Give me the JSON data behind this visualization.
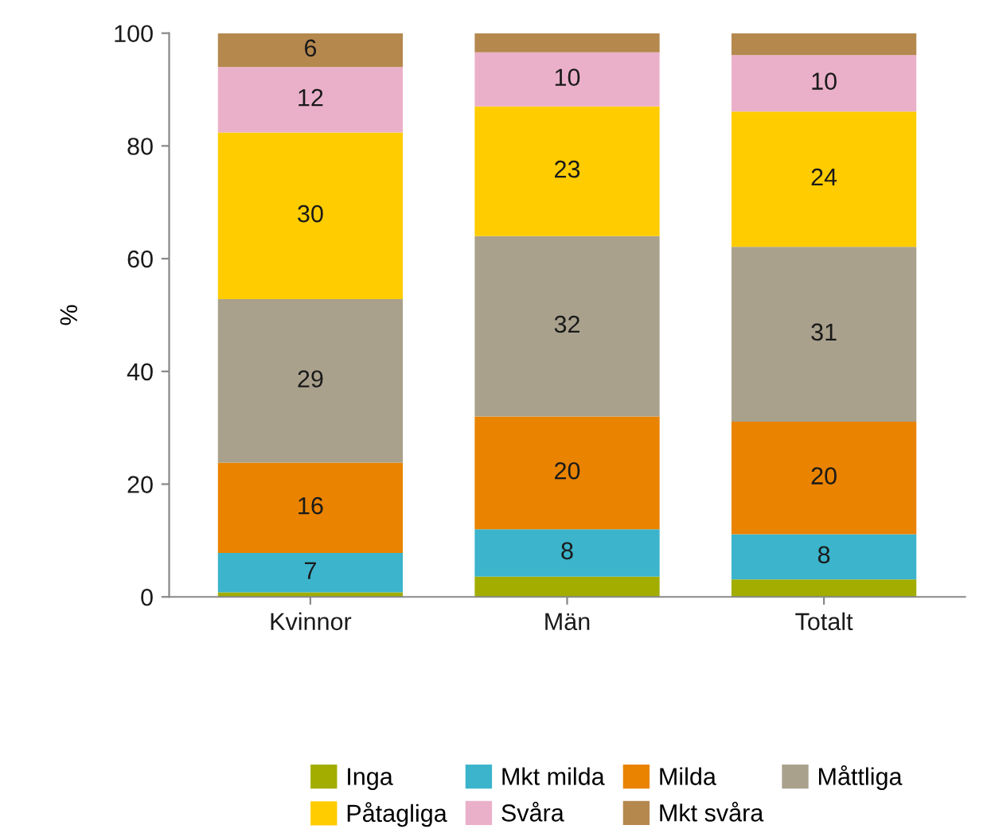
{
  "chart_data": {
    "type": "bar",
    "stacked": true,
    "ylabel": "%",
    "categories": [
      "Kvinnor",
      "Män",
      "Totalt"
    ],
    "series": [
      {
        "name": "Inga",
        "color": "#a2ad00",
        "values": [
          0.8,
          3.6,
          3.1
        ],
        "value_labels": [
          null,
          null,
          null
        ]
      },
      {
        "name": "Mkt milda",
        "color": "#3bb4cc",
        "values": [
          7,
          8.4,
          8
        ],
        "value_labels": [
          "7",
          "8",
          "8"
        ]
      },
      {
        "name": "Milda",
        "color": "#e98300",
        "values": [
          16,
          20,
          20
        ],
        "value_labels": [
          "16",
          "20",
          "20"
        ]
      },
      {
        "name": "Måttliga",
        "color": "#a9a18c",
        "values": [
          29,
          32,
          31
        ],
        "value_labels": [
          "29",
          "32",
          "31"
        ]
      },
      {
        "name": "Påtagliga",
        "color": "#ffcc00",
        "values": [
          29.6,
          23,
          24
        ],
        "value_labels": [
          "30",
          "23",
          "24"
        ]
      },
      {
        "name": "Svåra",
        "color": "#ebb0c9",
        "values": [
          11.6,
          9.6,
          10
        ],
        "value_labels": [
          "12",
          "10",
          "10"
        ]
      },
      {
        "name": "Mkt svåra",
        "color": "#b5884e",
        "values": [
          6,
          3.4,
          3.9
        ],
        "value_labels": [
          "6",
          null,
          null
        ]
      }
    ],
    "ylim": [
      0,
      100
    ],
    "yticks": [
      0,
      20,
      40,
      60,
      80,
      100
    ],
    "grid": false,
    "legend": "bottom"
  }
}
